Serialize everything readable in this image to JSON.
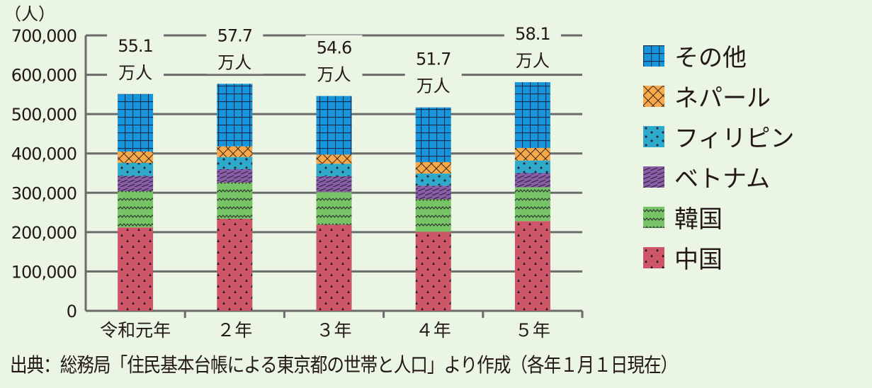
{
  "chart_data": {
    "type": "bar",
    "stacked": true,
    "title": "",
    "ylabel": "（人）",
    "xlabel": "",
    "ylim": [
      0,
      700000
    ],
    "yticks": [
      0,
      100000,
      200000,
      300000,
      400000,
      500000,
      600000,
      700000
    ],
    "ytick_labels": [
      "0",
      "100,000",
      "200,000",
      "300,000",
      "400,000",
      "500,000",
      "600,000",
      "700,000"
    ],
    "categories": [
      "令和元年",
      "２年",
      "３年",
      "４年",
      "５年"
    ],
    "totals_labels": [
      {
        "value": "55.1",
        "unit": "万人"
      },
      {
        "value": "57.7",
        "unit": "万人"
      },
      {
        "value": "54.6",
        "unit": "万人"
      },
      {
        "value": "51.7",
        "unit": "万人"
      },
      {
        "value": "58.1",
        "unit": "万人"
      }
    ],
    "totals": [
      551000,
      577000,
      546000,
      517000,
      581000
    ],
    "series": [
      {
        "name": "中国",
        "color": "#cf5568",
        "pattern": "triangles",
        "values": [
          212000,
          234000,
          219000,
          201000,
          228000
        ]
      },
      {
        "name": "韓国",
        "color": "#77c466",
        "pattern": "zigzag",
        "values": [
          92000,
          92000,
          83000,
          83000,
          86000
        ]
      },
      {
        "name": "ベトナム",
        "color": "#8a5da8",
        "pattern": "diagonal",
        "values": [
          39000,
          34000,
          40000,
          34000,
          36000
        ]
      },
      {
        "name": "フィリピン",
        "color": "#2eaacc",
        "pattern": "dots",
        "values": [
          33000,
          31000,
          32000,
          31000,
          32000
        ]
      },
      {
        "name": "ネパール",
        "color": "#f9a84a",
        "pattern": "crosshatch",
        "values": [
          29000,
          27000,
          23000,
          29000,
          32000
        ]
      },
      {
        "name": "その他",
        "color": "#1596dc",
        "pattern": "grid",
        "values": [
          146000,
          159000,
          149000,
          139000,
          167000
        ]
      }
    ],
    "legend_order": [
      "その他",
      "ネパール",
      "フィリピン",
      "ベトナム",
      "韓国",
      "中国"
    ],
    "legend_position": "right",
    "grid": true
  },
  "caption": "出典：総務局「住民基本台帳による東京都の世帯と人口」より作成（各年１月１日現在）"
}
